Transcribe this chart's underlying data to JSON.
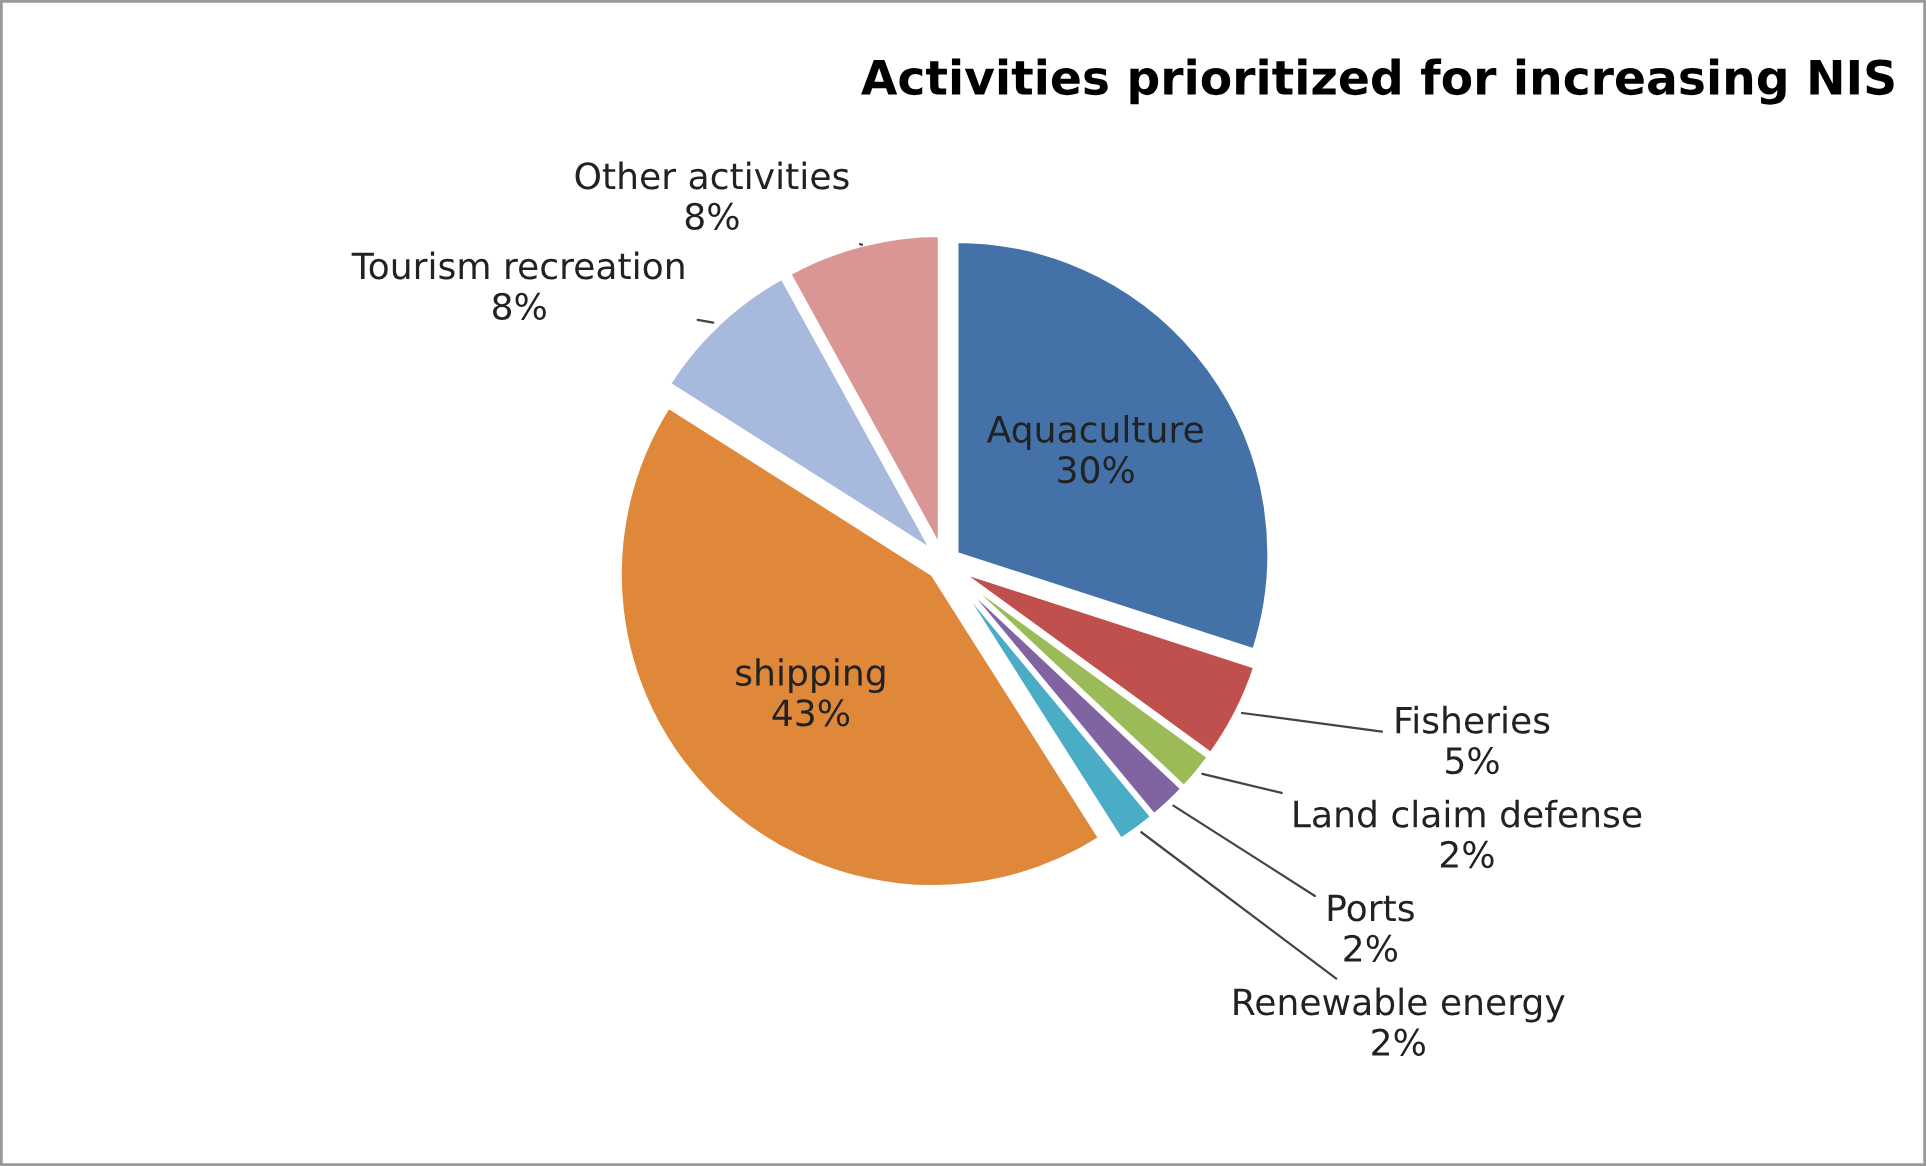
{
  "chart_data": {
    "type": "pie",
    "title": "Activities prioritized for increasing NIS",
    "categories": [
      "Aquaculture",
      "Fisheries",
      "Land claim defense",
      "Ports",
      "Renewable energy",
      "shipping",
      "Tourism recreation",
      "Other activities"
    ],
    "values": [
      30,
      5,
      2,
      2,
      2,
      43,
      8,
      8
    ],
    "colors": [
      "#4472a8",
      "#c0504d",
      "#9bbb59",
      "#8064a2",
      "#4bacc6",
      "#e0883a",
      "#a7b9dd",
      "#d99694"
    ],
    "value_labels": [
      "30%",
      "5%",
      "2%",
      "2%",
      "2%",
      "43%",
      "8%",
      "8%"
    ]
  }
}
